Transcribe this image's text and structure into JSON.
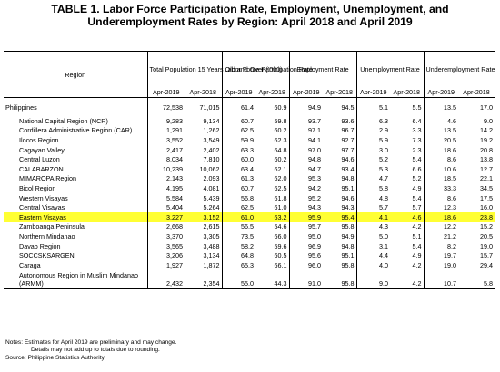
{
  "title_line1": "TABLE 1. Labor Force Participation Rate, Employment, Unemployment, and",
  "title_line2": "Underemployment Rates by Region: April 2018 and April 2019",
  "headers": {
    "region": "Region",
    "population": "Total Population 15 Years Old and Over ('000)",
    "lfpr": "Labor Force Participation Rate",
    "employment": "Employment Rate",
    "unemployment": "Unemployment Rate",
    "underemployment": "Underemployment Rate",
    "apr2019": "Apr-2019",
    "apr2018": "Apr-2018"
  },
  "philippines": {
    "name": "Philippines",
    "v": [
      "72,538",
      "71,015",
      "61.4",
      "60.9",
      "94.9",
      "94.5",
      "5.1",
      "5.5",
      "13.5",
      "17.0"
    ]
  },
  "regions": [
    {
      "name": "National Capital Region (NCR)",
      "v": [
        "9,283",
        "9,134",
        "60.7",
        "59.8",
        "93.7",
        "93.6",
        "6.3",
        "6.4",
        "4.6",
        "9.0"
      ]
    },
    {
      "name": "Cordillera Administrative Region (CAR)",
      "v": [
        "1,291",
        "1,262",
        "62.5",
        "60.2",
        "97.1",
        "96.7",
        "2.9",
        "3.3",
        "13.5",
        "14.2"
      ]
    },
    {
      "name": "Ilocos Region",
      "v": [
        "3,552",
        "3,549",
        "59.9",
        "62.3",
        "94.1",
        "92.7",
        "5.9",
        "7.3",
        "20.5",
        "19.2"
      ]
    },
    {
      "name": "Cagayan Valley",
      "v": [
        "2,417",
        "2,402",
        "63.3",
        "64.8",
        "97.0",
        "97.7",
        "3.0",
        "2.3",
        "18.6",
        "20.8"
      ]
    },
    {
      "name": "Central Luzon",
      "v": [
        "8,034",
        "7,810",
        "60.0",
        "60.2",
        "94.8",
        "94.6",
        "5.2",
        "5.4",
        "8.6",
        "13.8"
      ]
    },
    {
      "name": "CALABARZON",
      "v": [
        "10,239",
        "10,062",
        "63.4",
        "62.1",
        "94.7",
        "93.4",
        "5.3",
        "6.6",
        "10.6",
        "12.7"
      ]
    },
    {
      "name": "MIMAROPA Region",
      "v": [
        "2,143",
        "2,093",
        "61.3",
        "62.0",
        "95.3",
        "94.8",
        "4.7",
        "5.2",
        "18.5",
        "22.1"
      ]
    },
    {
      "name": "Bicol Region",
      "v": [
        "4,195",
        "4,081",
        "60.7",
        "62.5",
        "94.2",
        "95.1",
        "5.8",
        "4.9",
        "33.3",
        "34.5"
      ]
    },
    {
      "name": "Western Visayas",
      "v": [
        "5,584",
        "5,439",
        "56.8",
        "61.8",
        "95.2",
        "94.6",
        "4.8",
        "5.4",
        "8.6",
        "17.5"
      ]
    },
    {
      "name": "Central Visayas",
      "v": [
        "5,404",
        "5,264",
        "62.5",
        "61.0",
        "94.3",
        "94.3",
        "5.7",
        "5.7",
        "12.3",
        "16.0"
      ]
    },
    {
      "name": "Eastern Visayas",
      "highlight": true,
      "v": [
        "3,227",
        "3,152",
        "61.0",
        "63.2",
        "95.9",
        "95.4",
        "4.1",
        "4.6",
        "18.6",
        "23.8"
      ]
    },
    {
      "name": "Zamboanga Peninsula",
      "v": [
        "2,668",
        "2,615",
        "56.5",
        "54.6",
        "95.7",
        "95.8",
        "4.3",
        "4.2",
        "12.2",
        "15.2"
      ]
    },
    {
      "name": "Northern Mindanao",
      "v": [
        "3,370",
        "3,305",
        "73.5",
        "66.0",
        "95.0",
        "94.9",
        "5.0",
        "5.1",
        "21.2",
        "20.5"
      ]
    },
    {
      "name": "Davao Region",
      "v": [
        "3,565",
        "3,488",
        "58.2",
        "59.6",
        "96.9",
        "94.8",
        "3.1",
        "5.4",
        "8.2",
        "19.0"
      ]
    },
    {
      "name": "SOCCSKSARGEN",
      "v": [
        "3,206",
        "3,134",
        "64.8",
        "60.5",
        "95.6",
        "95.1",
        "4.4",
        "4.9",
        "19.7",
        "15.7"
      ]
    },
    {
      "name": "Caraga",
      "v": [
        "1,927",
        "1,872",
        "65.3",
        "66.1",
        "96.0",
        "95.8",
        "4.0",
        "4.2",
        "19.0",
        "29.4"
      ]
    },
    {
      "name": "Autonomous Region in Muslim Mindanao (ARMM)",
      "tall": true,
      "v": [
        "2,432",
        "2,354",
        "55.0",
        "44.3",
        "91.0",
        "95.8",
        "9.0",
        "4.2",
        "10.7",
        "5.8"
      ]
    }
  ],
  "notes": {
    "label": "Notes:",
    "line1": "Estimates for April 2019 are preliminary and may change.",
    "line2": "Details may not add up to totals due to rounding.",
    "source_label": "Source:",
    "source": "Philippine Statistics Authority"
  }
}
